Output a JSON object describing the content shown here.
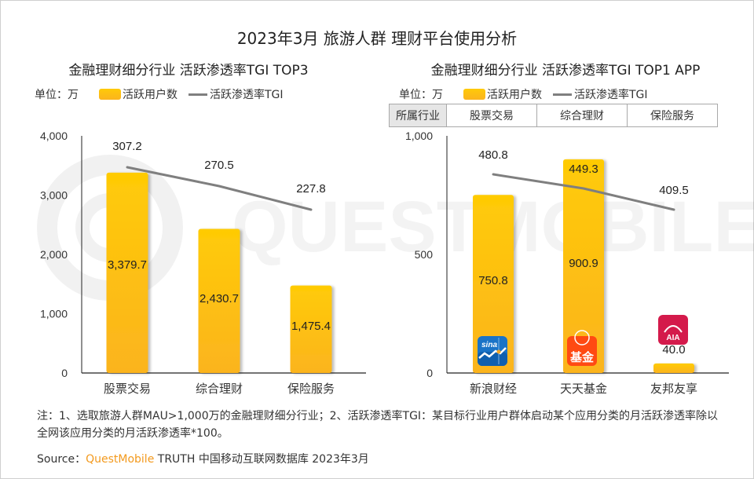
{
  "title": "2023年3月 旅游人群 理财平台使用分析",
  "colors": {
    "bar_top": "#ffcb05",
    "bar_bottom": "#fbb41f",
    "line": "#7f7f7f",
    "brand": "#f39a1e",
    "sina_icon": "#1a73c7",
    "fund_icon": "#ff4a12",
    "aia_icon": "#d41a4b"
  },
  "left": {
    "subtitle": "金融理财细分行业 活跃渗透率TGI TOP3",
    "legend": {
      "unit": "单位：万",
      "bar": "活跃用户数",
      "line": "活跃渗透率TGI"
    }
  },
  "right": {
    "subtitle": "金融理财细分行业 活跃渗透率TGI TOP1 APP",
    "legend": {
      "unit": "单位：万",
      "bar": "活跃用户数",
      "line": "活跃渗透率TGI"
    },
    "industry_table": {
      "header": "所属行业",
      "cells": [
        "股票交易",
        "综合理财",
        "保险服务"
      ]
    },
    "app_icons": [
      {
        "name": "sina-finance-icon",
        "label": "sina"
      },
      {
        "name": "tiantian-fund-icon",
        "label": "基金"
      },
      {
        "name": "aia-icon",
        "label": "AIA"
      }
    ]
  },
  "chart_data": [
    {
      "type": "bar",
      "title": "金融理财细分行业 活跃渗透率TGI TOP3",
      "categories": [
        "股票交易",
        "综合理财",
        "保险服务"
      ],
      "series": [
        {
          "name": "活跃用户数",
          "type": "bar",
          "values": [
            3379.7,
            2430.7,
            1475.4
          ],
          "labels": [
            "3,379.7",
            "2,430.7",
            "1,475.4"
          ]
        },
        {
          "name": "活跃渗透率TGI",
          "type": "line",
          "values": [
            307.2,
            270.5,
            227.8
          ],
          "labels": [
            "307.2",
            "270.5",
            "227.8"
          ]
        }
      ],
      "ylim": [
        0,
        4000
      ],
      "yticks": [
        0,
        1000,
        2000,
        3000,
        4000
      ],
      "ytick_labels": [
        "0",
        "1,000",
        "2,000",
        "3,000",
        "4,000"
      ],
      "ylabel": "单位：万",
      "grid": false,
      "legend": "top-left"
    },
    {
      "type": "bar",
      "title": "金融理财细分行业 活跃渗透率TGI TOP1 APP",
      "categories": [
        "新浪财经",
        "天天基金",
        "友邦友享"
      ],
      "series": [
        {
          "name": "活跃用户数",
          "type": "bar",
          "values": [
            750.8,
            900.9,
            40.0
          ],
          "labels": [
            "750.8",
            "900.9",
            "40.0"
          ]
        },
        {
          "name": "活跃渗透率TGI",
          "type": "line",
          "values": [
            480.8,
            449.3,
            409.5
          ],
          "labels": [
            "480.8",
            "449.3",
            "409.5"
          ]
        }
      ],
      "ylim": [
        0,
        1000
      ],
      "yticks": [
        0,
        500,
        1000
      ],
      "ytick_labels": [
        "0",
        "500",
        "1,000"
      ],
      "ylabel": "单位：万",
      "grid": false,
      "legend": "top-left"
    }
  ],
  "note": "注：1、选取旅游人群MAU>1,000万的金融理财细分行业；2、活跃渗透率TGI：某目标行业用户群体启动某个应用分类的月活跃渗透率除以全网该应用分类的月活跃渗透率*100。",
  "source": {
    "prefix": "Source：",
    "brand": "QuestMobile",
    "rest": " TRUTH 中国移动互联网数据库 2023年3月"
  },
  "watermark": "QUESTMOBILE"
}
